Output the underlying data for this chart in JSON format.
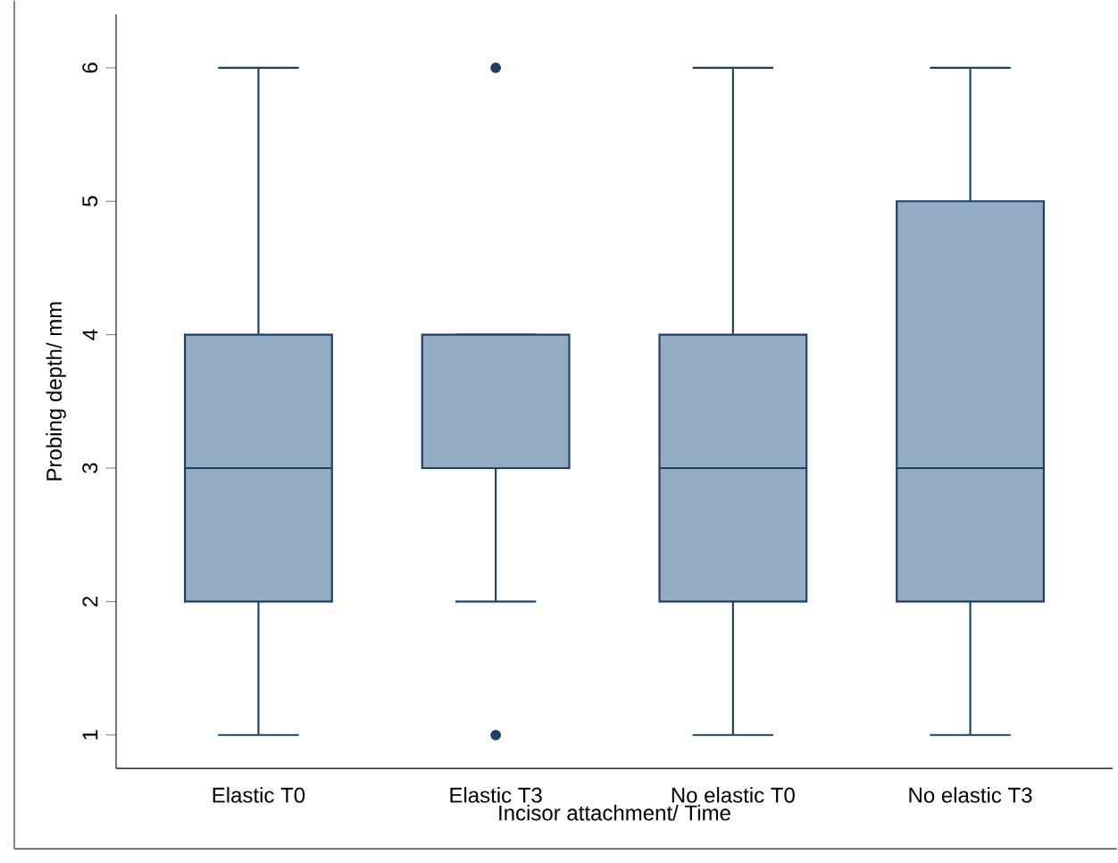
{
  "chart_data": {
    "type": "box",
    "xlabel": "Incisor attachment/ Time",
    "ylabel": "Probing depth/ mm",
    "categories": [
      "Elastic T0",
      "Elastic T3",
      "No elastic T0",
      "No elastic T3"
    ],
    "boxes": [
      {
        "low": 1,
        "q1": 2,
        "median": 3,
        "q3": 4,
        "high": 6
      },
      {
        "low": 2,
        "q1": 3,
        "median": 3,
        "q3": 4,
        "high": 4,
        "outliers": [
          6,
          1
        ]
      },
      {
        "low": 1,
        "q1": 2,
        "median": 3,
        "q3": 4,
        "high": 6
      },
      {
        "low": 1,
        "q1": 2,
        "median": 3,
        "q3": 5,
        "high": 6
      }
    ],
    "color": "#93acc4",
    "ylim": [
      0.75,
      6.4
    ],
    "yticks": [
      1,
      2,
      3,
      4,
      5,
      6
    ],
    "grid": false
  }
}
